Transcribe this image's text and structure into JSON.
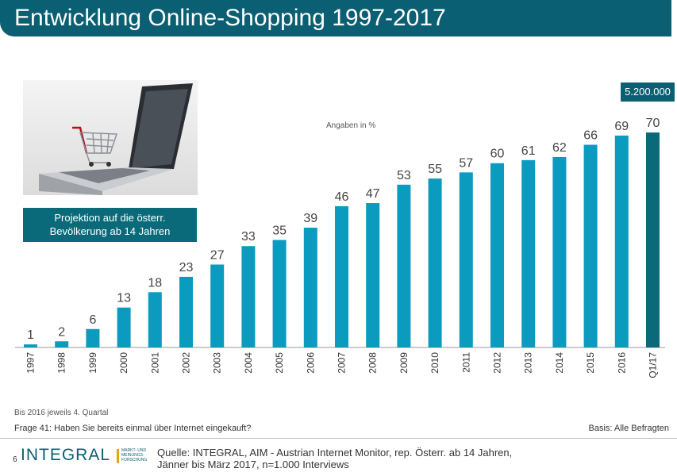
{
  "header": {
    "title": "Entwicklung Online-Shopping 1997-2017"
  },
  "projection_box": {
    "line1": "Projektion auf die österr.",
    "line2": "Bevölkerung ab 14 Jahren"
  },
  "unit_note": "Angaben in %",
  "total_label": "5.200.000",
  "footer": {
    "footnote": "Bis 2016 jeweils 4. Quartal",
    "question": "Frage 41: Haben Sie bereits einmal über Internet eingekauft?",
    "basis": "Basis: Alle Befragten",
    "page_number": "6",
    "logo_text": "INTEGRAL",
    "logo_sub1": "MARKT- UND",
    "logo_sub2": "MEINUNGS-",
    "logo_sub3": "FORSCHUNG",
    "source_line1": "Quelle: INTEGRAL, AIM - Austrian Internet Monitor, rep. Österr. ab 14 Jahren,",
    "source_line2": "Jänner bis März 2017, n=1.000  Interviews"
  },
  "colors": {
    "bar": "#0a9bbf",
    "bar_highlight": "#0b6a7a",
    "header": "#0b5f72"
  },
  "chart_data": {
    "type": "bar",
    "title": "Entwicklung Online-Shopping 1997-2017",
    "xlabel": "",
    "ylabel": "",
    "unit": "Angaben in %",
    "categories": [
      "1997",
      "1998",
      "1999",
      "2000",
      "2001",
      "2002",
      "2003",
      "2004",
      "2005",
      "2006",
      "2007",
      "2008",
      "2009",
      "2010",
      "2011",
      "2012",
      "2013",
      "2014",
      "2015",
      "2016",
      "Q1/17"
    ],
    "values": [
      1,
      2,
      6,
      13,
      18,
      23,
      27,
      33,
      35,
      39,
      46,
      47,
      53,
      55,
      57,
      60,
      61,
      62,
      66,
      69,
      70
    ],
    "ylim": [
      0,
      70
    ],
    "grid": false,
    "legend": "none",
    "highlight_last": true
  }
}
